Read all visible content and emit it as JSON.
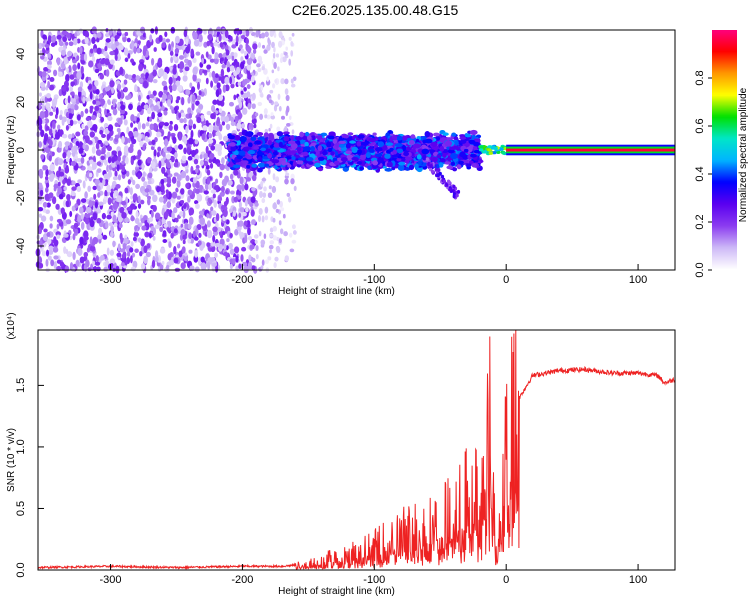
{
  "title": "C2E6.2025.135.00.48.G15",
  "chart_data": [
    {
      "type": "heatmap",
      "xlabel": "Height of straight line (km)",
      "ylabel": "Frequency (Hz)",
      "xlim": [
        -355,
        128
      ],
      "ylim": [
        -50,
        50
      ],
      "xticks": [
        -300,
        -200,
        -100,
        0,
        100
      ],
      "yticks": [
        -40,
        -20,
        0,
        20,
        40
      ],
      "colorbar": {
        "label": "Normalized spectral amplitude",
        "range": [
          0.0,
          1.0
        ],
        "ticks": [
          0.0,
          0.2,
          0.4,
          0.6,
          0.8
        ],
        "colormap": [
          "#ffffff",
          "#cdb8f7",
          "#8b3cf0",
          "#5a00f0",
          "#0000ff",
          "#00b4ff",
          "#00e6c8",
          "#00e000",
          "#ffff00",
          "#ff9600",
          "#ff0000",
          "#ff0080"
        ]
      },
      "regions": [
        {
          "x_range": [
            -355,
            -190
          ],
          "freq_range": [
            -50,
            50
          ],
          "amplitude": 0.15,
          "pattern": "scattered noise"
        },
        {
          "x_range": [
            -190,
            -160
          ],
          "freq_range": [
            -50,
            50
          ],
          "amplitude": 0.07,
          "pattern": "sparse noise"
        },
        {
          "x_range": [
            -210,
            -20
          ],
          "freq_range": [
            -8,
            8
          ],
          "amplitude": 0.3,
          "pattern": "signal band"
        },
        {
          "x_range": [
            -20,
            0
          ],
          "freq_range": [
            -2,
            2
          ],
          "amplitude": 0.6,
          "pattern": "narrowing signal"
        },
        {
          "x_range": [
            0,
            128
          ],
          "freq_range": [
            -1,
            1
          ],
          "amplitude": 0.95,
          "pattern": "steady tone"
        }
      ]
    },
    {
      "type": "line",
      "xlabel": "Height of straight line (km)",
      "ylabel": "SNR (10 * v/v)",
      "y_multiplier": "(x10⁴)",
      "xlim": [
        -355,
        128
      ],
      "ylim": [
        0,
        1.95
      ],
      "xticks": [
        -300,
        -200,
        -100,
        0,
        100
      ],
      "yticks": [
        0.0,
        0.5,
        1.0,
        1.5
      ],
      "color": "#ee2222",
      "series": [
        {
          "x": [
            -355,
            -300,
            -250,
            -200,
            -170,
            -150,
            -130,
            -110,
            -100,
            -90,
            -75,
            -60,
            -50,
            -40,
            -30,
            -25,
            -20,
            -15,
            -12,
            -10,
            -8,
            -5,
            0,
            5,
            10,
            20,
            30,
            40,
            60,
            80,
            100,
            115,
            120,
            128
          ],
          "y": [
            0.02,
            0.03,
            0.02,
            0.03,
            0.03,
            0.05,
            0.1,
            0.15,
            0.18,
            0.22,
            0.3,
            0.32,
            0.38,
            0.42,
            0.55,
            0.65,
            0.6,
            0.8,
            1.1,
            0.55,
            0.28,
            0.4,
            0.95,
            1.1,
            1.4,
            1.58,
            1.6,
            1.62,
            1.63,
            1.6,
            1.6,
            1.58,
            1.52,
            1.55
          ]
        }
      ]
    }
  ]
}
